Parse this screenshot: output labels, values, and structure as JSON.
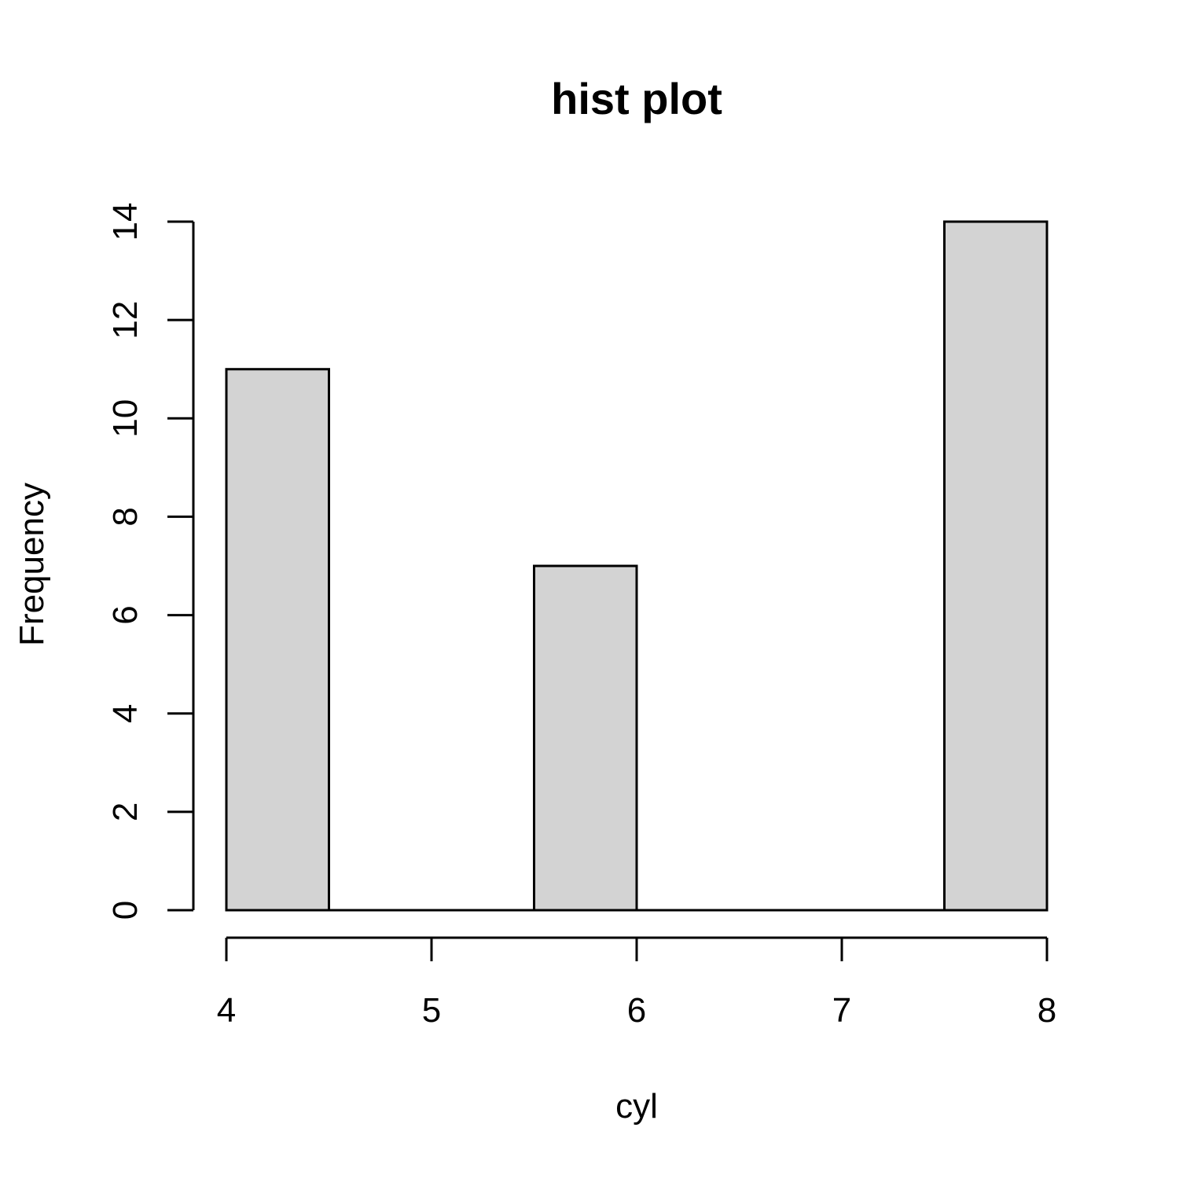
{
  "chart_data": {
    "type": "bar",
    "subtype": "histogram",
    "title": "hist plot",
    "xlabel": "cyl",
    "ylabel": "Frequency",
    "bins": [
      {
        "x0": 4.0,
        "x1": 4.5,
        "count": 11
      },
      {
        "x0": 4.5,
        "x1": 5.0,
        "count": 0
      },
      {
        "x0": 5.0,
        "x1": 5.5,
        "count": 0
      },
      {
        "x0": 5.5,
        "x1": 6.0,
        "count": 7
      },
      {
        "x0": 6.0,
        "x1": 6.5,
        "count": 0
      },
      {
        "x0": 6.5,
        "x1": 7.0,
        "count": 0
      },
      {
        "x0": 7.0,
        "x1": 7.5,
        "count": 0
      },
      {
        "x0": 7.5,
        "x1": 8.0,
        "count": 14
      }
    ],
    "xlim": [
      4,
      8
    ],
    "ylim": [
      0,
      14
    ],
    "x_ticks": [
      "4",
      "5",
      "6",
      "7",
      "8"
    ],
    "y_ticks": [
      "0",
      "2",
      "4",
      "6",
      "8",
      "10",
      "12",
      "14"
    ],
    "grid": false,
    "bar_color": "#d3d3d3",
    "border_color": "#000000"
  }
}
